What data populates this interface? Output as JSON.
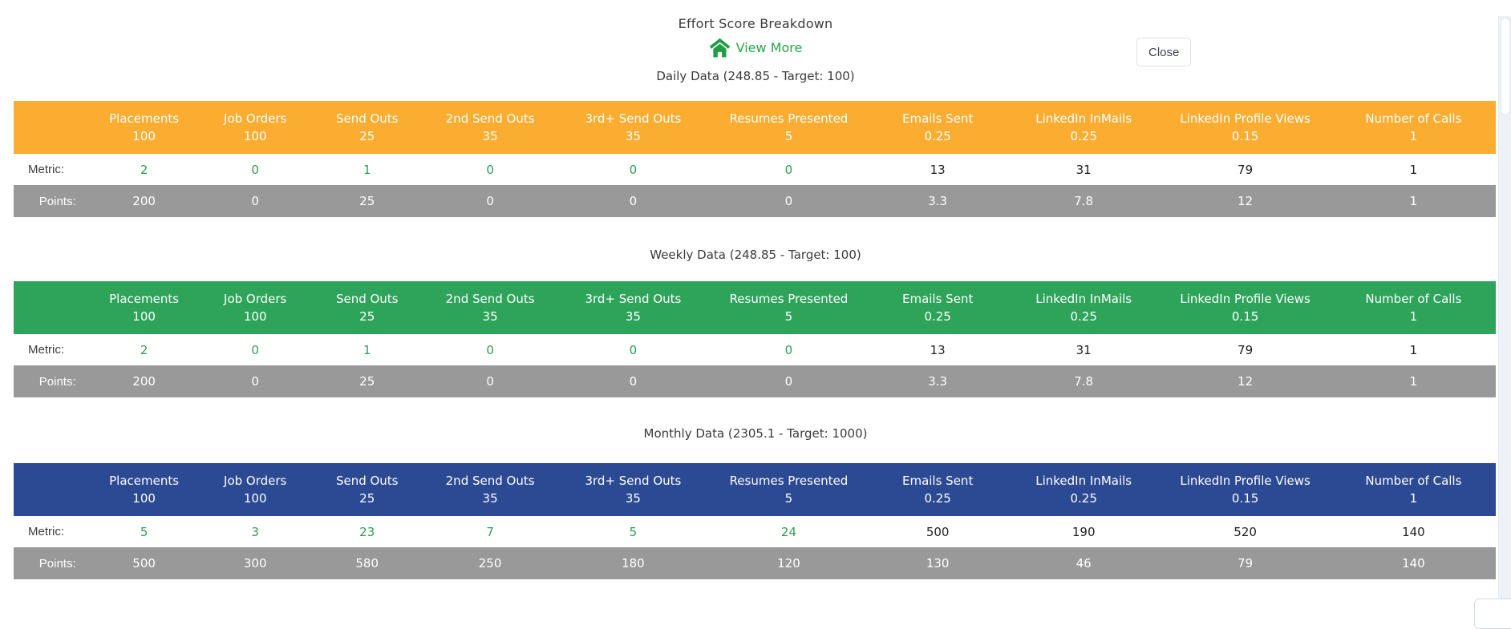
{
  "modal": {
    "title": "Effort Score Breakdown",
    "view_more_label": "View More",
    "close_label": "Close"
  },
  "row_labels": {
    "metric": "Metric:",
    "points": "Points:"
  },
  "columns": [
    {
      "label": "Placements",
      "weight": "100",
      "metric_green": true
    },
    {
      "label": "Job Orders",
      "weight": "100",
      "metric_green": true
    },
    {
      "label": "Send Outs",
      "weight": "25",
      "metric_green": true
    },
    {
      "label": "2nd Send Outs",
      "weight": "35",
      "metric_green": true
    },
    {
      "label": "3rd+ Send Outs",
      "weight": "35",
      "metric_green": true
    },
    {
      "label": "Resumes Presented",
      "weight": "5",
      "metric_green": true
    },
    {
      "label": "Emails Sent",
      "weight": "0.25",
      "metric_green": false
    },
    {
      "label": "LinkedIn InMails",
      "weight": "0.25",
      "metric_green": false
    },
    {
      "label": "LinkedIn Profile Views",
      "weight": "0.15",
      "metric_green": false
    },
    {
      "label": "Number of Calls",
      "weight": "1",
      "metric_green": false
    }
  ],
  "sections": [
    {
      "id": "daily",
      "title": "Daily Data (248.85 - Target: 100)",
      "header_color": "#fbad32",
      "metric": [
        "2",
        "0",
        "1",
        "0",
        "0",
        "0",
        "13",
        "31",
        "79",
        "1"
      ],
      "points": [
        "200",
        "0",
        "25",
        "0",
        "0",
        "0",
        "3.3",
        "7.8",
        "12",
        "1"
      ]
    },
    {
      "id": "weekly",
      "title": "Weekly Data (248.85 - Target: 100)",
      "header_color": "#2da45a",
      "metric": [
        "2",
        "0",
        "1",
        "0",
        "0",
        "0",
        "13",
        "31",
        "79",
        "1"
      ],
      "points": [
        "200",
        "0",
        "25",
        "0",
        "0",
        "0",
        "3.3",
        "7.8",
        "12",
        "1"
      ]
    },
    {
      "id": "monthly",
      "title": "Monthly Data (2305.1 - Target: 1000)",
      "header_color": "#2c4a93",
      "metric": [
        "5",
        "3",
        "23",
        "7",
        "5",
        "24",
        "500",
        "190",
        "520",
        "140"
      ],
      "points": [
        "500",
        "300",
        "580",
        "250",
        "180",
        "120",
        "130",
        "46",
        "79",
        "140"
      ]
    }
  ],
  "colors": {
    "daily_header": "#fbad32",
    "weekly_header": "#2da45a",
    "monthly_header": "#2c4a93",
    "points_row_bg": "#999999",
    "metric_positive_text": "#2e9e4f",
    "link_green": "#28a447"
  }
}
